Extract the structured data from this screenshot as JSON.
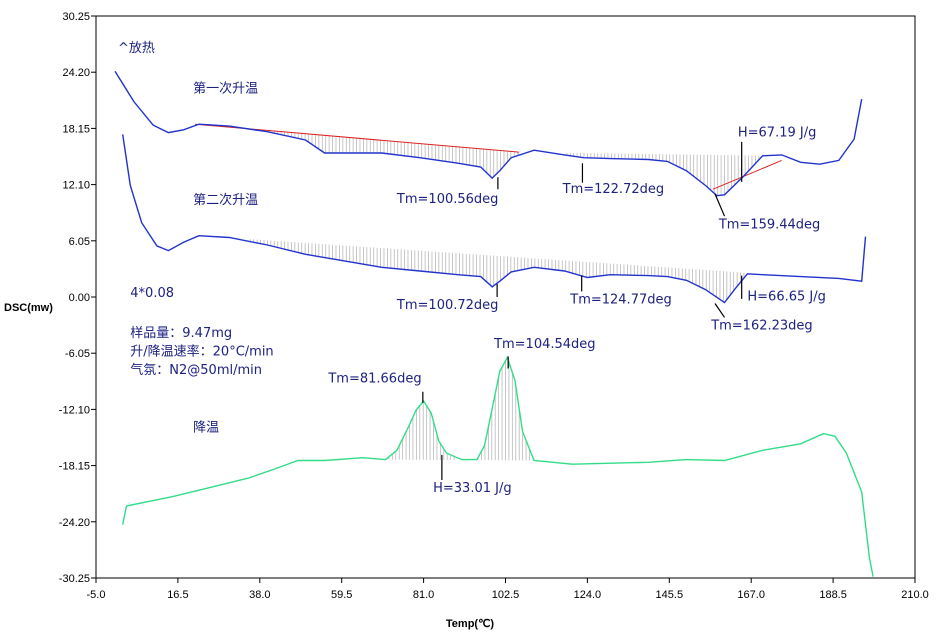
{
  "chart_data": {
    "type": "line",
    "xlabel": "Temp(℃)",
    "ylabel": "DSC(mw)",
    "xlim": [
      -5.0,
      210.0
    ],
    "ylim": [
      -30.25,
      30.25
    ],
    "x_ticks": [
      "-5.0",
      "16.5",
      "38.0",
      "59.5",
      "81.0",
      "102.5",
      "124.0",
      "145.5",
      "167.0",
      "188.5",
      "210.0"
    ],
    "y_ticks": [
      "30.25",
      "24.20",
      "18.15",
      "12.10",
      "6.05",
      "0.00",
      "-6.05",
      "-12.10",
      "-18.15",
      "-24.20",
      "-30.25"
    ],
    "exo_label": "^放热",
    "series": [
      {
        "name": "第一次升温",
        "color": "#2233cc",
        "label_at": [
          20.5,
          22.0
        ],
        "points": [
          [
            0,
            24.3
          ],
          [
            5,
            21.0
          ],
          [
            10,
            18.5
          ],
          [
            14,
            17.7
          ],
          [
            18,
            18.0
          ],
          [
            22,
            18.6
          ],
          [
            30,
            18.4
          ],
          [
            40,
            17.8
          ],
          [
            50,
            16.9
          ],
          [
            55,
            15.5
          ],
          [
            70,
            15.5
          ],
          [
            80,
            15.0
          ],
          [
            90,
            14.4
          ],
          [
            96,
            14.0
          ],
          [
            99,
            12.8
          ],
          [
            101,
            13.6
          ],
          [
            104,
            15.0
          ],
          [
            110,
            15.8
          ],
          [
            118,
            15.3
          ],
          [
            123,
            15.0
          ],
          [
            130,
            14.9
          ],
          [
            140,
            14.8
          ],
          [
            145,
            14.6
          ],
          [
            150,
            13.6
          ],
          [
            155,
            12.0
          ],
          [
            158,
            10.9
          ],
          [
            160,
            11.0
          ],
          [
            165,
            13.0
          ],
          [
            170,
            15.2
          ],
          [
            175,
            15.3
          ],
          [
            180,
            14.5
          ],
          [
            185,
            14.3
          ],
          [
            190,
            14.7
          ],
          [
            194,
            17.0
          ],
          [
            196,
            21.3
          ]
        ]
      },
      {
        "name": "第二次升温",
        "color": "#2233cc",
        "label_at": [
          20.5,
          10.0
        ],
        "points": [
          [
            2,
            17.5
          ],
          [
            4,
            12.0
          ],
          [
            7,
            8.0
          ],
          [
            11,
            5.5
          ],
          [
            14,
            5.0
          ],
          [
            18,
            5.9
          ],
          [
            22,
            6.6
          ],
          [
            30,
            6.4
          ],
          [
            40,
            5.6
          ],
          [
            50,
            4.6
          ],
          [
            60,
            3.9
          ],
          [
            70,
            3.2
          ],
          [
            80,
            2.8
          ],
          [
            90,
            2.4
          ],
          [
            96,
            2.2
          ],
          [
            99,
            1.1
          ],
          [
            101,
            1.7
          ],
          [
            104,
            2.7
          ],
          [
            110,
            3.2
          ],
          [
            118,
            2.8
          ],
          [
            124,
            2.1
          ],
          [
            130,
            2.4
          ],
          [
            140,
            2.3
          ],
          [
            145,
            2.2
          ],
          [
            150,
            1.8
          ],
          [
            155,
            0.8
          ],
          [
            160,
            -0.6
          ],
          [
            163,
            1.0
          ],
          [
            166,
            2.5
          ],
          [
            170,
            2.4
          ],
          [
            180,
            2.2
          ],
          [
            190,
            2.0
          ],
          [
            196,
            1.7
          ],
          [
            197,
            6.5
          ]
        ]
      },
      {
        "name": "降温",
        "color": "#33dd88",
        "label_at": [
          20.5,
          -14.5
        ],
        "points": [
          [
            2,
            -24.5
          ],
          [
            3,
            -22.5
          ],
          [
            15,
            -21.5
          ],
          [
            25,
            -20.5
          ],
          [
            35,
            -19.5
          ],
          [
            42,
            -18.5
          ],
          [
            48,
            -17.6
          ],
          [
            55,
            -17.6
          ],
          [
            65,
            -17.3
          ],
          [
            71,
            -17.5
          ],
          [
            74,
            -16.5
          ],
          [
            77,
            -14.0
          ],
          [
            79,
            -12.2
          ],
          [
            81,
            -11.2
          ],
          [
            83,
            -12.5
          ],
          [
            85,
            -15.5
          ],
          [
            87,
            -16.8
          ],
          [
            91,
            -17.5
          ],
          [
            95,
            -17.5
          ],
          [
            97,
            -16.0
          ],
          [
            99,
            -12.0
          ],
          [
            101,
            -8.0
          ],
          [
            103,
            -6.5
          ],
          [
            105,
            -9.0
          ],
          [
            107,
            -14.5
          ],
          [
            110,
            -17.6
          ],
          [
            120,
            -18.0
          ],
          [
            140,
            -17.8
          ],
          [
            150,
            -17.5
          ],
          [
            160,
            -17.6
          ],
          [
            170,
            -16.5
          ],
          [
            180,
            -15.8
          ],
          [
            186,
            -14.7
          ],
          [
            189,
            -15.0
          ],
          [
            192,
            -16.8
          ],
          [
            196,
            -21.0
          ],
          [
            198,
            -28.0
          ],
          [
            199,
            -30.1
          ]
        ]
      }
    ],
    "baselines": [
      {
        "color": "#dd2222",
        "points": [
          [
            21,
            18.6
          ],
          [
            106,
            15.6
          ]
        ]
      },
      {
        "color": "#dd2222",
        "points": [
          [
            157,
            11.6
          ],
          [
            175,
            14.7
          ]
        ]
      }
    ],
    "hatched_regions": [
      {
        "series": 0,
        "x_from": 22,
        "x_to": 106,
        "base_from": 18.6,
        "base_to": 15.6
      },
      {
        "series": 0,
        "x_from": 106,
        "x_to": 172,
        "base_from": 15.6,
        "base_to": 15.2
      },
      {
        "series": 1,
        "x_from": 22,
        "x_to": 166,
        "base_from": 6.6,
        "base_to": 2.6
      },
      {
        "series": 2,
        "x_from": 71,
        "x_to": 110,
        "base_from": -17.5,
        "base_to": -17.6
      }
    ],
    "annotations": [
      {
        "text": "Tm=100.56deg",
        "at": [
          74,
          10.1
        ],
        "tick": [
          [
            100.5,
            12.9
          ],
          [
            100.5,
            11.6
          ]
        ]
      },
      {
        "text": "Tm=122.72deg",
        "at": [
          117.5,
          11.2
        ],
        "tick": [
          [
            122.7,
            14.4
          ],
          [
            122.7,
            12.3
          ]
        ]
      },
      {
        "text": "Tm=159.44deg",
        "at": [
          158.5,
          7.4
        ],
        "tick": [
          [
            157.5,
            11.1
          ],
          [
            160,
            8.7
          ]
        ]
      },
      {
        "text": "H=67.19 J/g",
        "at": [
          163.5,
          17.3
        ],
        "tick": [
          [
            164.5,
            16.7
          ],
          [
            164.5,
            12.4
          ]
        ]
      },
      {
        "text": "Tm=100.72deg",
        "at": [
          74,
          -1.3
        ],
        "tick": [
          [
            100.3,
            1.4
          ],
          [
            100.3,
            0.0
          ]
        ]
      },
      {
        "text": "Tm=124.77deg",
        "at": [
          119.5,
          -0.7
        ],
        "tick": [
          [
            122.5,
            2.3
          ],
          [
            122.5,
            0.6
          ]
        ]
      },
      {
        "text": "H=66.65 J/g",
        "at": [
          166,
          -0.4
        ],
        "tick": [
          [
            164.5,
            2.3
          ],
          [
            164.5,
            -0.2
          ]
        ]
      },
      {
        "text": "Tm=162.23deg",
        "at": [
          156.5,
          -3.5
        ],
        "tick": [
          [
            157.5,
            -0.7
          ],
          [
            160,
            -2.2
          ]
        ]
      },
      {
        "text": "Tm=81.66deg",
        "at": [
          56,
          -9.2
        ],
        "tick": [
          [
            80.8,
            -10.2
          ],
          [
            80.8,
            -11.4
          ]
        ]
      },
      {
        "text": "Tm=104.54deg",
        "at": [
          99.5,
          -5.5
        ],
        "tick": [
          [
            103.2,
            -6.4
          ],
          [
            103.2,
            -7.7
          ]
        ]
      },
      {
        "text": "H=33.01 J/g",
        "at": [
          83.5,
          -21.0
        ],
        "tick": [
          [
            85.8,
            -17.0
          ],
          [
            85.8,
            -19.7
          ]
        ]
      },
      {
        "text": "4*0.08",
        "at": [
          4.0,
          0.0
        ]
      },
      {
        "text": "样品量：9.47mg",
        "at": [
          4.0,
          -4.3
        ]
      },
      {
        "text": "升/降温速率：20°C/min",
        "at": [
          4.0,
          -6.3
        ]
      },
      {
        "text": "气氛：N2@50ml/min",
        "at": [
          4.0,
          -8.3
        ]
      }
    ]
  }
}
